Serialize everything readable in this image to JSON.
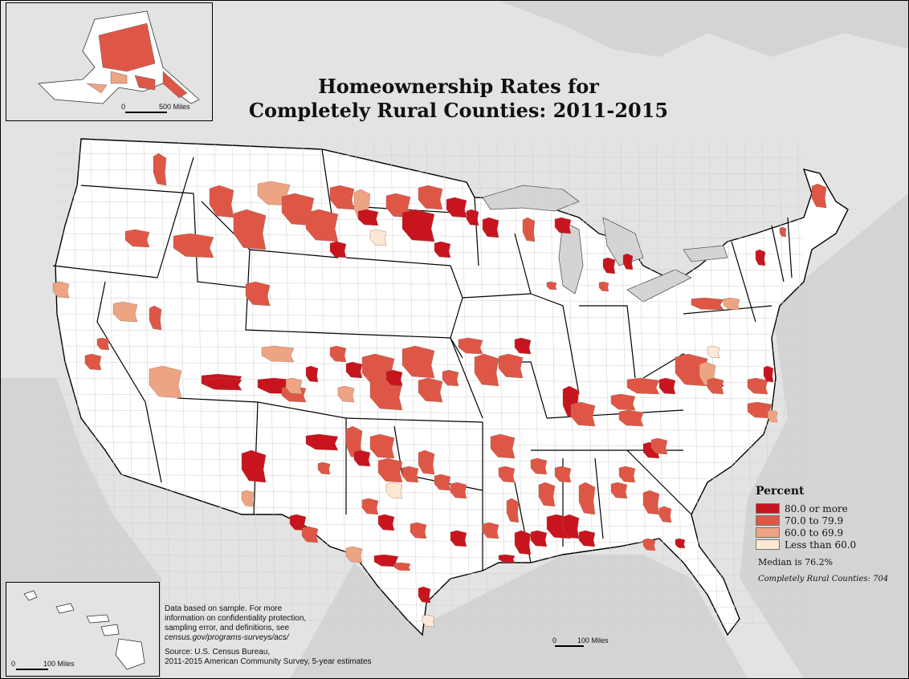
{
  "map": {
    "title_line1": "Homeownership Rates for",
    "title_line2": "Completely Rural Counties: 2011-2015"
  },
  "legend": {
    "title": "Percent",
    "items": [
      {
        "label": "80.0 or more",
        "color": "#c8141e"
      },
      {
        "label": "70.0 to 79.9",
        "color": "#de5746"
      },
      {
        "label": "60.0 to 69.9",
        "color": "#eda483"
      },
      {
        "label": "Less than 60.0",
        "color": "#fde8d6"
      }
    ],
    "median": "Median is 76.2%",
    "count": "Completely Rural Counties: 704"
  },
  "notes": {
    "line1": "Data based on sample. For more",
    "line2": "information on confidentiality protection,",
    "line3": "sampling error, and definitions, see",
    "url": "census.gov/programs-surveys/acs/",
    "source1": "Source: U.S. Census Bureau,",
    "source2": "2011-2015 American Community Survey, 5-year estimates"
  },
  "scales": {
    "alaska": {
      "zero": "0",
      "label": "500 Miles"
    },
    "hawaii": {
      "zero": "0",
      "label": "100 Miles"
    },
    "main": {
      "zero": "0",
      "label": "100 Miles"
    }
  },
  "colors": {
    "land": "#ffffff",
    "neighbors": "#e3e3e3",
    "water": "#d2d2d2",
    "state_border": "#000000",
    "county_border": "#c4c4c4"
  }
}
